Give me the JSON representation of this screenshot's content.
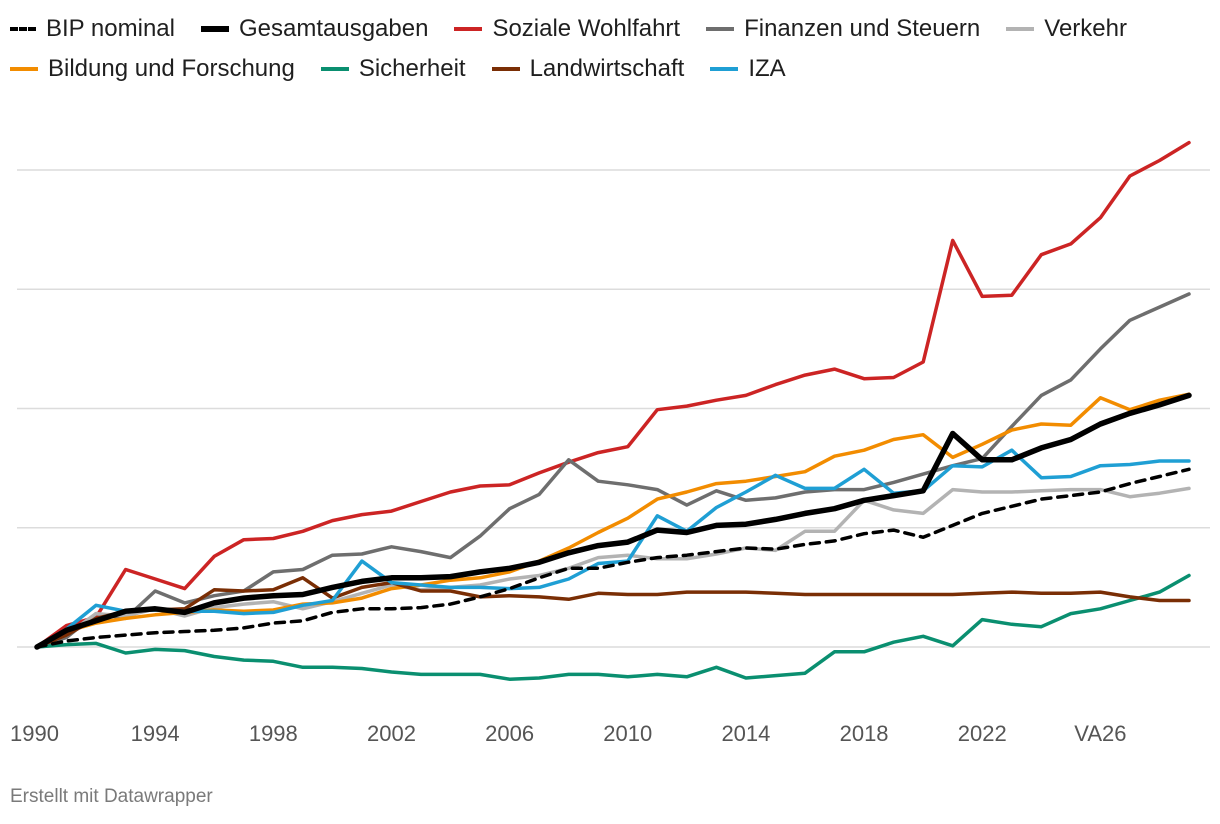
{
  "chart_data": {
    "type": "line",
    "title": "",
    "xlabel": "",
    "ylabel": "",
    "ylim": [
      0,
      4
    ],
    "grid": true,
    "legend_position": "top",
    "x_start": 1990,
    "x_end": 2029,
    "x_tick_labels": [
      {
        "x": 1990,
        "label": "1990"
      },
      {
        "x": 1994,
        "label": "1994"
      },
      {
        "x": 1998,
        "label": "1998"
      },
      {
        "x": 2002,
        "label": "2002"
      },
      {
        "x": 2006,
        "label": "2006"
      },
      {
        "x": 2010,
        "label": "2010"
      },
      {
        "x": 2014,
        "label": "2014"
      },
      {
        "x": 2018,
        "label": "2018"
      },
      {
        "x": 2022,
        "label": "2022"
      },
      {
        "x": 2026,
        "label": "VA26"
      }
    ],
    "y_gridlines": [
      0,
      1,
      2,
      3,
      4
    ],
    "series": [
      {
        "name": "BIP nominal",
        "color": "#000000",
        "style": "dashed",
        "width": 3.5,
        "values": [
          0,
          0.05,
          0.08,
          0.1,
          0.12,
          0.13,
          0.14,
          0.16,
          0.2,
          0.22,
          0.29,
          0.32,
          0.32,
          0.33,
          0.36,
          0.42,
          0.49,
          0.58,
          0.66,
          0.66,
          0.71,
          0.75,
          0.77,
          0.8,
          0.83,
          0.82,
          0.86,
          0.89,
          0.95,
          0.98,
          0.92,
          1.02,
          1.12,
          1.18,
          1.24,
          1.27,
          1.3,
          1.37,
          1.43,
          1.49
        ]
      },
      {
        "name": "Gesamtausgaben",
        "color": "#000000",
        "style": "solid",
        "width": 5.5,
        "values": [
          0,
          0.14,
          0.22,
          0.3,
          0.32,
          0.29,
          0.37,
          0.41,
          0.43,
          0.44,
          0.5,
          0.55,
          0.58,
          0.58,
          0.59,
          0.63,
          0.66,
          0.71,
          0.79,
          0.85,
          0.88,
          0.98,
          0.96,
          1.02,
          1.03,
          1.07,
          1.12,
          1.16,
          1.23,
          1.27,
          1.31,
          1.79,
          1.57,
          1.57,
          1.67,
          1.74,
          1.87,
          1.96,
          2.03,
          2.11
        ]
      },
      {
        "name": "Soziale Wohlfahrt",
        "color": "#cc2424",
        "style": "solid",
        "width": 3.5,
        "values": [
          0,
          0.18,
          0.25,
          0.65,
          0.57,
          0.49,
          0.76,
          0.9,
          0.91,
          0.97,
          1.06,
          1.11,
          1.14,
          1.22,
          1.3,
          1.35,
          1.36,
          1.46,
          1.55,
          1.63,
          1.68,
          1.99,
          2.02,
          2.07,
          2.11,
          2.2,
          2.28,
          2.33,
          2.25,
          2.26,
          2.39,
          3.41,
          2.94,
          2.95,
          3.29,
          3.38,
          3.6,
          3.95,
          4.08,
          4.23
        ]
      },
      {
        "name": "Finanzen und Steuern",
        "color": "#6e6e6e",
        "style": "solid",
        "width": 3.5,
        "values": [
          0,
          0.08,
          0.28,
          0.24,
          0.47,
          0.37,
          0.43,
          0.47,
          0.63,
          0.65,
          0.77,
          0.78,
          0.84,
          0.8,
          0.75,
          0.93,
          1.16,
          1.28,
          1.57,
          1.39,
          1.36,
          1.32,
          1.19,
          1.31,
          1.23,
          1.25,
          1.3,
          1.32,
          1.32,
          1.38,
          1.45,
          1.52,
          1.58,
          1.85,
          2.11,
          2.24,
          2.5,
          2.74,
          2.85,
          2.96
        ]
      },
      {
        "name": "Verkehr",
        "color": "#b3b3b3",
        "style": "solid",
        "width": 3.5,
        "values": [
          0,
          0.1,
          0.28,
          0.26,
          0.32,
          0.26,
          0.33,
          0.36,
          0.38,
          0.32,
          0.38,
          0.45,
          0.52,
          0.48,
          0.5,
          0.52,
          0.57,
          0.6,
          0.66,
          0.75,
          0.77,
          0.74,
          0.74,
          0.78,
          0.83,
          0.81,
          0.97,
          0.97,
          1.23,
          1.15,
          1.12,
          1.32,
          1.3,
          1.3,
          1.31,
          1.32,
          1.32,
          1.26,
          1.29,
          1.33
        ]
      },
      {
        "name": "Bildung und Forschung",
        "color": "#f28c00",
        "style": "solid",
        "width": 3.5,
        "values": [
          0,
          0.13,
          0.2,
          0.24,
          0.27,
          0.29,
          0.31,
          0.3,
          0.31,
          0.36,
          0.37,
          0.41,
          0.49,
          0.52,
          0.56,
          0.58,
          0.63,
          0.72,
          0.83,
          0.96,
          1.08,
          1.24,
          1.3,
          1.37,
          1.39,
          1.43,
          1.47,
          1.6,
          1.65,
          1.74,
          1.78,
          1.59,
          1.7,
          1.82,
          1.87,
          1.86,
          2.09,
          1.99,
          2.07,
          2.12
        ]
      },
      {
        "name": "Sicherheit",
        "color": "#0a8f70",
        "style": "solid",
        "width": 3.5,
        "values": [
          0,
          0.02,
          0.03,
          -0.05,
          -0.02,
          -0.03,
          -0.08,
          -0.11,
          -0.12,
          -0.17,
          -0.17,
          -0.18,
          -0.21,
          -0.23,
          -0.23,
          -0.23,
          -0.27,
          -0.26,
          -0.23,
          -0.23,
          -0.25,
          -0.23,
          -0.25,
          -0.17,
          -0.26,
          -0.24,
          -0.22,
          -0.04,
          -0.04,
          0.04,
          0.09,
          0.01,
          0.23,
          0.19,
          0.17,
          0.28,
          0.32,
          0.39,
          0.46,
          0.6
        ]
      },
      {
        "name": "Landwirtschaft",
        "color": "#7a2e05",
        "style": "solid",
        "width": 3.5,
        "values": [
          0,
          0.1,
          0.24,
          0.3,
          0.31,
          0.32,
          0.48,
          0.47,
          0.48,
          0.58,
          0.41,
          0.5,
          0.54,
          0.47,
          0.47,
          0.42,
          0.43,
          0.42,
          0.4,
          0.45,
          0.44,
          0.44,
          0.46,
          0.46,
          0.46,
          0.45,
          0.44,
          0.44,
          0.44,
          0.44,
          0.44,
          0.44,
          0.45,
          0.46,
          0.45,
          0.45,
          0.46,
          0.42,
          0.39,
          0.39
        ]
      },
      {
        "name": "IZA",
        "color": "#1f9fd4",
        "style": "solid",
        "width": 3.5,
        "values": [
          0,
          0.15,
          0.35,
          0.3,
          0.31,
          0.3,
          0.3,
          0.28,
          0.29,
          0.35,
          0.39,
          0.72,
          0.54,
          0.52,
          0.5,
          0.5,
          0.49,
          0.5,
          0.57,
          0.7,
          0.72,
          1.1,
          0.97,
          1.17,
          1.3,
          1.44,
          1.33,
          1.33,
          1.49,
          1.29,
          1.31,
          1.52,
          1.51,
          1.65,
          1.42,
          1.43,
          1.52,
          1.53,
          1.56,
          1.56
        ]
      }
    ]
  },
  "footer": {
    "credit": "Erstellt mit Datawrapper"
  }
}
